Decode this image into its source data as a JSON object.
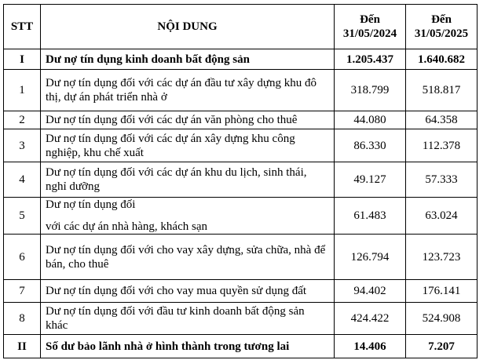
{
  "header": {
    "stt": "STT",
    "content": "NỘI DUNG",
    "col1_line1": "Đến",
    "col1_line2": "31/05/2024",
    "col2_line1": "Đến",
    "col2_line2": "31/05/2025"
  },
  "rows": [
    {
      "stt": "I",
      "content": "Dư nợ tín dụng kinh doanh bất động sản",
      "v2024": "1.205.437",
      "v2025": "1.640.682"
    },
    {
      "stt": "1",
      "content": "Dư nợ tín dụng đối với các dự án đầu tư xây dựng khu đô thị, dự án phát triển nhà ở",
      "v2024": "318.799",
      "v2025": "518.817"
    },
    {
      "stt": "2",
      "content": "Dư nợ tín dụng đối với các dự án văn phòng cho thuê",
      "v2024": "44.080",
      "v2025": "64.358"
    },
    {
      "stt": "3",
      "content": "Dư nợ tín dụng đối với các dự án xây dựng khu công nghiệp, khu chế xuất",
      "v2024": "86.330",
      "v2025": "112.378"
    },
    {
      "stt": "4",
      "content": "Dư nợ tín dụng đối với các dự án khu du lịch, sinh thái, nghỉ dưỡng",
      "v2024": "49.127",
      "v2025": "57.333"
    },
    {
      "stt": "5",
      "content_line1": "Dư nợ tín dụng đối",
      "content_line2": "với các dự án nhà hàng, khách sạn",
      "v2024": "61.483",
      "v2025": "63.024"
    },
    {
      "stt": "6",
      "content": "Dư nợ tín dụng đối với cho vay xây dựng, sửa chữa, nhà để bán, cho thuê",
      "v2024": "126.794",
      "v2025": "123.723"
    },
    {
      "stt": "7",
      "content": "Dư nợ tín dụng đối với cho vay mua quyền sử dụng đất",
      "v2024": "94.402",
      "v2025": "176.141"
    },
    {
      "stt": "8",
      "content": "Dư nợ tín dụng đối với đầu tư kinh doanh bất động sản khác",
      "v2024": "424.422",
      "v2025": "524.908"
    },
    {
      "stt": "II",
      "content": "Số dư bảo lãnh nhà ở hình thành trong tương lai",
      "v2024": "14.406",
      "v2025": "7.207"
    }
  ]
}
